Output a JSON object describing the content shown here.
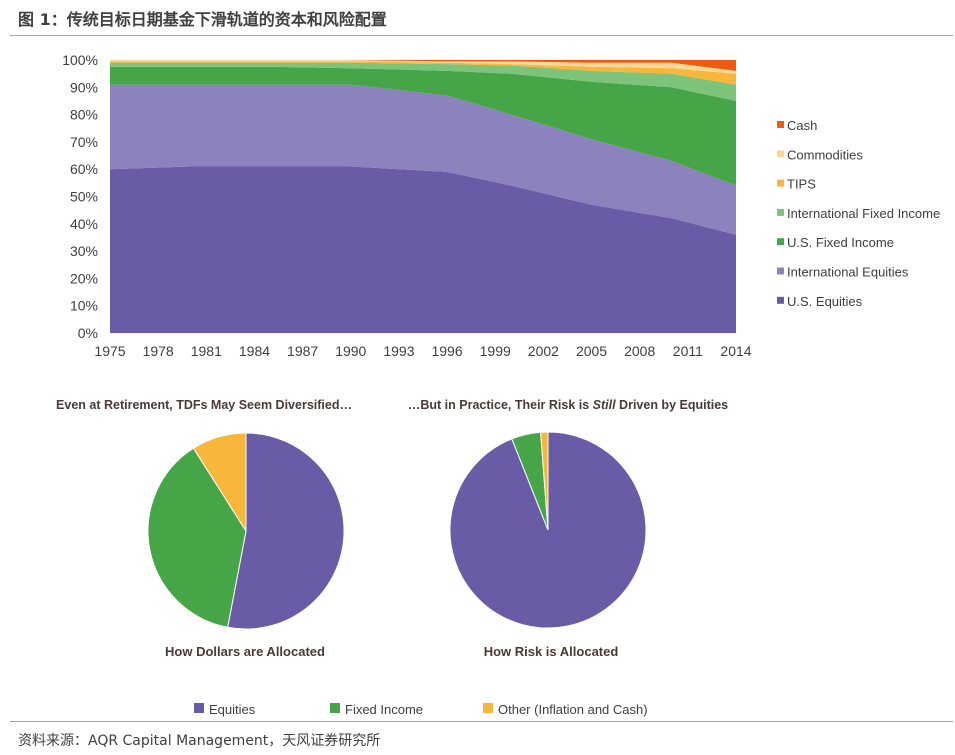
{
  "figure": {
    "title": "图 1：传统目标日期基金下滑轨道的资本和风险配置",
    "source": "资料来源：AQR Capital Management，天风证券研究所"
  },
  "colors": {
    "us_equities": "#6a5ba6",
    "intl_equities": "#8c82bd",
    "us_fixed_income": "#45a547",
    "intl_fixed_income": "#7dc47a",
    "tips": "#f8b63a",
    "commodities": "#f8d79a",
    "cash": "#ee5a0f"
  },
  "chart_data": [
    {
      "type": "area",
      "stacked": true,
      "title": "",
      "xlabel": "",
      "ylabel": "",
      "x_ticks": [
        "1975",
        "1978",
        "1981",
        "1984",
        "1987",
        "1990",
        "1993",
        "1996",
        "1999",
        "2002",
        "2005",
        "2008",
        "2011",
        "2014"
      ],
      "y_ticks": [
        "0%",
        "10%",
        "20%",
        "30%",
        "40%",
        "50%",
        "60%",
        "70%",
        "80%",
        "90%",
        "100%"
      ],
      "xlim": [
        1975,
        2014
      ],
      "ylim": [
        0,
        100
      ],
      "x": [
        1975,
        1980,
        1985,
        1990,
        1996,
        2000,
        2005,
        2010,
        2014
      ],
      "series": [
        {
          "name": "U.S. Equities",
          "color_key": "us_equities",
          "values": [
            60,
            61,
            61,
            61,
            59,
            54,
            47,
            42,
            36
          ]
        },
        {
          "name": "International Equities",
          "color_key": "intl_equities",
          "values": [
            31,
            30,
            30,
            30,
            28,
            26,
            24,
            21,
            18
          ]
        },
        {
          "name": "U.S. Fixed Income",
          "color_key": "us_fixed_income",
          "values": [
            6.5,
            6.5,
            6.5,
            6,
            9,
            15,
            21,
            27,
            31
          ]
        },
        {
          "name": "International Fixed Income",
          "color_key": "intl_fixed_income",
          "values": [
            1.5,
            1.5,
            1.5,
            2,
            2.5,
            3,
            4,
            5,
            6
          ]
        },
        {
          "name": "TIPS",
          "color_key": "tips",
          "values": [
            0.5,
            0.5,
            0.5,
            0.5,
            0.5,
            0.5,
            1.5,
            2,
            4
          ]
        },
        {
          "name": "Commodities",
          "color_key": "commodities",
          "values": [
            0.5,
            0.5,
            0.5,
            0.5,
            0.5,
            1,
            1.5,
            2,
            1
          ]
        },
        {
          "name": "Cash",
          "color_key": "cash",
          "values": [
            0,
            0,
            0,
            0,
            0.5,
            0.5,
            1,
            1,
            4
          ]
        }
      ],
      "legend": [
        "Cash",
        "Commodities",
        "TIPS",
        "International Fixed Income",
        "U.S. Fixed Income",
        "International Equities",
        "U.S. Equities"
      ],
      "legend_placement": "right"
    },
    {
      "type": "pie",
      "title": "Even at Retirement, TDFs May Seem Diversified…",
      "caption": "How Dollars are Allocated",
      "slices": [
        {
          "label": "Equities",
          "value": 53,
          "color_key": "us_equities"
        },
        {
          "label": "Fixed Income",
          "value": 38,
          "color_key": "us_fixed_income"
        },
        {
          "label": "Other (Inflation and Cash)",
          "value": 9,
          "color_key": "tips"
        }
      ]
    },
    {
      "type": "pie",
      "title_parts": [
        "…But in Practice, Their Risk is ",
        "Still",
        " Driven by Equities"
      ],
      "caption": "How Risk is Allocated",
      "slices": [
        {
          "label": "Equities",
          "value": 94,
          "color_key": "us_equities"
        },
        {
          "label": "Fixed Income",
          "value": 4.8,
          "color_key": "us_fixed_income"
        },
        {
          "label": "Other (Inflation and Cash)",
          "value": 1.2,
          "color_key": "tips"
        }
      ]
    }
  ],
  "bottom_legend": [
    {
      "label": "Equities",
      "color_key": "us_equities"
    },
    {
      "label": "Fixed Income",
      "color_key": "us_fixed_income"
    },
    {
      "label": "Other (Inflation and Cash)",
      "color_key": "tips"
    }
  ]
}
